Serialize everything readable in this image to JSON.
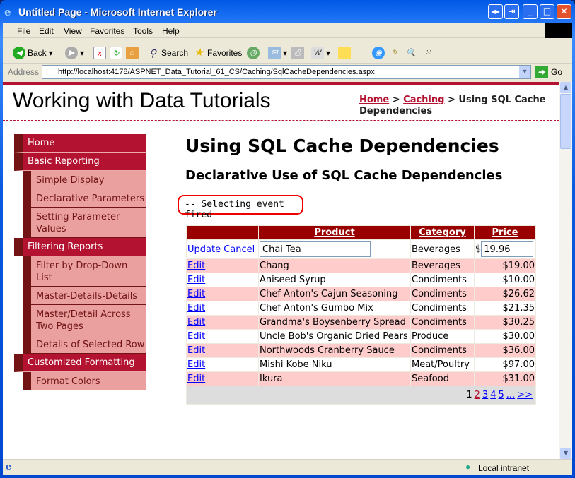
{
  "window": {
    "title": "Untitled Page - Microsoft Internet Explorer"
  },
  "menu": [
    "File",
    "Edit",
    "View",
    "Favorites",
    "Tools",
    "Help"
  ],
  "toolbar": {
    "back": "Back",
    "search": "Search",
    "favorites": "Favorites"
  },
  "address": {
    "label": "Address",
    "url": "http://localhost:4178/ASPNET_Data_Tutorial_61_CS/Caching/SqlCacheDependencies.aspx",
    "go": "Go"
  },
  "site": {
    "title": "Working with Data Tutorials"
  },
  "breadcrumb": {
    "home": "Home",
    "sep": ">",
    "caching": "Caching",
    "current": "Using SQL Cache Dependencies"
  },
  "nav": [
    {
      "label": "Home",
      "level": 0
    },
    {
      "label": "Basic Reporting",
      "level": 0
    },
    {
      "label": "Simple Display",
      "level": 1
    },
    {
      "label": "Declarative Parameters",
      "level": 1
    },
    {
      "label": "Setting Parameter Values",
      "level": 1
    },
    {
      "label": "Filtering Reports",
      "level": 0
    },
    {
      "label": "Filter by Drop-Down List",
      "level": 1
    },
    {
      "label": "Master-Details-Details",
      "level": 1
    },
    {
      "label": "Master/Detail Across Two Pages",
      "level": 1
    },
    {
      "label": "Details of Selected Row",
      "level": 1
    },
    {
      "label": "Customized Formatting",
      "level": 0
    },
    {
      "label": "Format Colors",
      "level": 1
    }
  ],
  "main": {
    "heading": "Using SQL Cache Dependencies",
    "subheading": "Declarative Use of SQL Cache Dependencies",
    "message": "-- Selecting event fired"
  },
  "grid": {
    "headers": [
      "Product",
      "Category",
      "Price"
    ],
    "edit_row": {
      "update": "Update",
      "cancel": "Cancel",
      "product": "Chai Tea",
      "category": "Beverages",
      "currency": "$",
      "price": "19.96"
    },
    "edit_label": "Edit",
    "rows": [
      {
        "product": "Chang",
        "category": "Beverages",
        "price": "$19.00"
      },
      {
        "product": "Aniseed Syrup",
        "category": "Condiments",
        "price": "$10.00"
      },
      {
        "product": "Chef Anton's Cajun Seasoning",
        "category": "Condiments",
        "price": "$26.62"
      },
      {
        "product": "Chef Anton's Gumbo Mix",
        "category": "Condiments",
        "price": "$21.35"
      },
      {
        "product": "Grandma's Boysenberry Spread",
        "category": "Condiments",
        "price": "$30.25"
      },
      {
        "product": "Uncle Bob's Organic Dried Pears",
        "category": "Produce",
        "price": "$30.00"
      },
      {
        "product": "Northwoods Cranberry Sauce",
        "category": "Condiments",
        "price": "$36.00"
      },
      {
        "product": "Mishi Kobe Niku",
        "category": "Meat/Poultry",
        "price": "$97.00"
      },
      {
        "product": "Ikura",
        "category": "Seafood",
        "price": "$31.00"
      }
    ],
    "pager": {
      "current": "1",
      "pages": [
        "2",
        "3",
        "4",
        "5",
        "...",
        ">>"
      ]
    }
  },
  "status": {
    "zone": "Local intranet"
  }
}
